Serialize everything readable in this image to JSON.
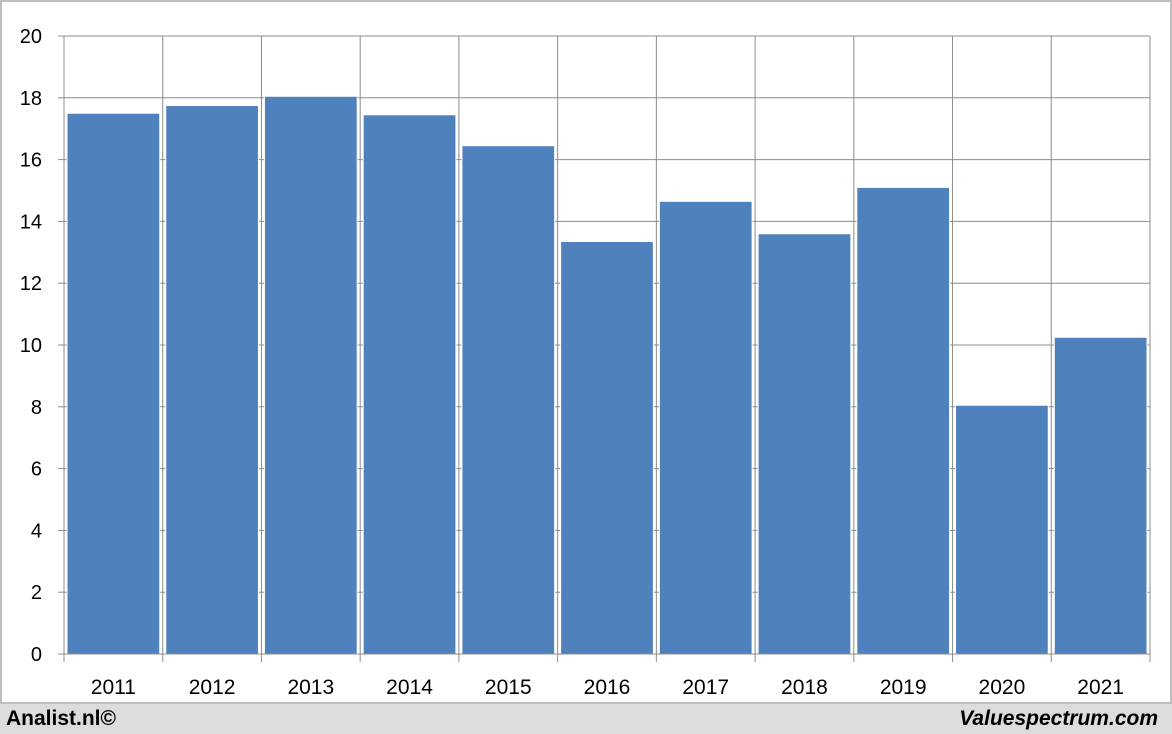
{
  "chart_data": {
    "type": "bar",
    "categories": [
      "2011",
      "2012",
      "2013",
      "2014",
      "2015",
      "2016",
      "2017",
      "2018",
      "2019",
      "2020",
      "2021"
    ],
    "values": [
      17.5,
      17.75,
      18.05,
      17.45,
      16.45,
      13.35,
      14.65,
      13.6,
      15.1,
      8.05,
      10.25
    ],
    "ylim": [
      0,
      20
    ],
    "yticks": [
      0,
      2,
      4,
      6,
      8,
      10,
      12,
      14,
      16,
      18,
      20
    ],
    "grid": true,
    "bar_color": "#4f81bd",
    "grid_color": "#8c8c8c"
  },
  "footer": {
    "left": "Analist.nl©",
    "right": "Valuespectrum.com"
  }
}
